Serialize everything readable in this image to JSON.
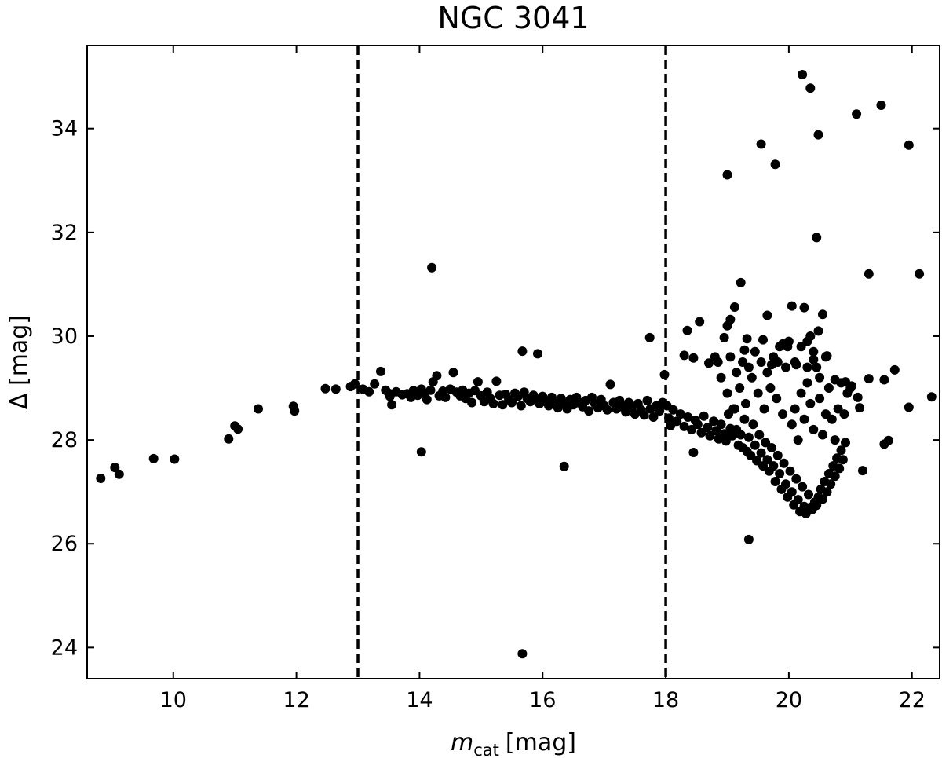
{
  "chart_data": {
    "type": "scatter",
    "title": "NGC 3041",
    "xlabel": {
      "symbol": "m",
      "subscript": "cat",
      "unit": "[mag]"
    },
    "ylabel": "Δ [mag]",
    "xlim": [
      8.6,
      22.45
    ],
    "ylim": [
      23.4,
      35.6
    ],
    "xticks": [
      10,
      12,
      14,
      16,
      18,
      20,
      22
    ],
    "yticks": [
      24,
      26,
      28,
      30,
      32,
      34
    ],
    "vlines": [
      13,
      18
    ],
    "grid": false,
    "legend": "none",
    "marker_color": "#000000",
    "points": [
      [
        8.82,
        27.26
      ],
      [
        9.05,
        27.47
      ],
      [
        9.12,
        27.34
      ],
      [
        9.68,
        27.64
      ],
      [
        10.02,
        27.63
      ],
      [
        10.9,
        28.02
      ],
      [
        11.0,
        28.27
      ],
      [
        11.05,
        28.21
      ],
      [
        11.38,
        28.6
      ],
      [
        11.95,
        28.65
      ],
      [
        11.97,
        28.56
      ],
      [
        12.47,
        28.99
      ],
      [
        12.64,
        28.98
      ],
      [
        12.88,
        29.03
      ],
      [
        12.95,
        29.08
      ],
      [
        13.08,
        28.98
      ],
      [
        13.18,
        28.93
      ],
      [
        13.27,
        29.08
      ],
      [
        13.37,
        29.32
      ],
      [
        13.45,
        28.96
      ],
      [
        13.5,
        28.9
      ],
      [
        13.52,
        28.84
      ],
      [
        13.55,
        28.68
      ],
      [
        13.62,
        28.93
      ],
      [
        13.72,
        28.87
      ],
      [
        13.8,
        28.89
      ],
      [
        13.86,
        28.82
      ],
      [
        13.9,
        28.95
      ],
      [
        13.97,
        28.86
      ],
      [
        14.03,
        28.98
      ],
      [
        14.08,
        28.9
      ],
      [
        14.12,
        28.78
      ],
      [
        14.18,
        28.96
      ],
      [
        14.22,
        29.12
      ],
      [
        14.28,
        29.24
      ],
      [
        14.32,
        28.85
      ],
      [
        14.38,
        28.94
      ],
      [
        14.42,
        28.82
      ],
      [
        14.5,
        28.98
      ],
      [
        14.55,
        29.3
      ],
      [
        14.6,
        28.92
      ],
      [
        14.66,
        28.85
      ],
      [
        14.7,
        28.96
      ],
      [
        14.75,
        28.8
      ],
      [
        14.8,
        28.9
      ],
      [
        14.85,
        28.72
      ],
      [
        14.9,
        28.95
      ],
      [
        14.95,
        29.12
      ],
      [
        15.0,
        28.85
      ],
      [
        15.05,
        28.74
      ],
      [
        15.1,
        28.92
      ],
      [
        15.15,
        28.8
      ],
      [
        15.2,
        28.7
      ],
      [
        15.25,
        29.13
      ],
      [
        15.3,
        28.86
      ],
      [
        15.35,
        28.68
      ],
      [
        15.4,
        28.88
      ],
      [
        15.45,
        28.78
      ],
      [
        15.5,
        28.72
      ],
      [
        15.55,
        28.9
      ],
      [
        15.6,
        28.84
      ],
      [
        15.65,
        28.66
      ],
      [
        15.7,
        28.92
      ],
      [
        15.75,
        28.8
      ],
      [
        15.8,
        28.74
      ],
      [
        15.85,
        28.86
      ],
      [
        15.9,
        28.78
      ],
      [
        15.95,
        28.7
      ],
      [
        16.0,
        28.84
      ],
      [
        16.05,
        28.74
      ],
      [
        16.1,
        28.66
      ],
      [
        16.15,
        28.82
      ],
      [
        16.2,
        28.72
      ],
      [
        16.25,
        28.62
      ],
      [
        16.3,
        28.8
      ],
      [
        16.35,
        28.7
      ],
      [
        16.4,
        28.6
      ],
      [
        16.45,
        28.78
      ],
      [
        16.5,
        28.68
      ],
      [
        16.55,
        28.82
      ],
      [
        16.6,
        28.72
      ],
      [
        16.65,
        28.64
      ],
      [
        16.7,
        28.76
      ],
      [
        16.75,
        28.56
      ],
      [
        16.8,
        28.82
      ],
      [
        16.85,
        28.7
      ],
      [
        16.9,
        28.62
      ],
      [
        16.95,
        28.78
      ],
      [
        17.0,
        28.66
      ],
      [
        17.05,
        28.58
      ],
      [
        17.1,
        29.07
      ],
      [
        17.15,
        28.72
      ],
      [
        17.2,
        28.6
      ],
      [
        17.25,
        28.76
      ],
      [
        17.3,
        28.64
      ],
      [
        17.35,
        28.54
      ],
      [
        17.4,
        28.72
      ],
      [
        17.45,
        28.62
      ],
      [
        17.5,
        28.5
      ],
      [
        17.55,
        28.7
      ],
      [
        17.6,
        28.58
      ],
      [
        17.65,
        28.48
      ],
      [
        17.7,
        28.76
      ],
      [
        17.75,
        28.6
      ],
      [
        17.8,
        28.44
      ],
      [
        17.85,
        28.66
      ],
      [
        17.9,
        28.56
      ],
      [
        17.95,
        28.72
      ],
      [
        14.2,
        31.32
      ],
      [
        15.67,
        29.71
      ],
      [
        15.92,
        29.66
      ],
      [
        17.74,
        29.97
      ],
      [
        14.03,
        27.77
      ],
      [
        16.35,
        27.49
      ],
      [
        15.67,
        23.88
      ],
      [
        18.02,
        28.66
      ],
      [
        18.05,
        28.42
      ],
      [
        18.08,
        28.28
      ],
      [
        18.12,
        28.58
      ],
      [
        18.18,
        28.36
      ],
      [
        18.24,
        28.5
      ],
      [
        18.3,
        28.26
      ],
      [
        18.36,
        28.44
      ],
      [
        18.42,
        28.2
      ],
      [
        18.48,
        28.38
      ],
      [
        18.52,
        28.3
      ],
      [
        18.58,
        28.14
      ],
      [
        18.62,
        28.46
      ],
      [
        18.68,
        28.24
      ],
      [
        18.72,
        28.08
      ],
      [
        18.78,
        28.36
      ],
      [
        18.82,
        28.18
      ],
      [
        18.86,
        28.02
      ],
      [
        18.9,
        28.3
      ],
      [
        18.95,
        28.12
      ],
      [
        18.98,
        27.98
      ],
      [
        19.02,
        28.5
      ],
      [
        19.05,
        28.22
      ],
      [
        19.08,
        28.08
      ],
      [
        19.12,
        28.6
      ],
      [
        19.15,
        28.2
      ],
      [
        19.18,
        27.9
      ],
      [
        19.22,
        28.1
      ],
      [
        19.25,
        27.85
      ],
      [
        19.28,
        28.4
      ],
      [
        19.32,
        27.78
      ],
      [
        19.35,
        28.05
      ],
      [
        19.38,
        27.7
      ],
      [
        19.42,
        28.3
      ],
      [
        19.45,
        27.9
      ],
      [
        19.48,
        27.6
      ],
      [
        19.52,
        28.1
      ],
      [
        19.55,
        27.75
      ],
      [
        19.58,
        27.5
      ],
      [
        19.62,
        27.95
      ],
      [
        19.65,
        27.62
      ],
      [
        19.68,
        27.4
      ],
      [
        19.72,
        27.85
      ],
      [
        19.75,
        27.5
      ],
      [
        19.78,
        27.2
      ],
      [
        19.82,
        27.7
      ],
      [
        19.85,
        27.35
      ],
      [
        19.88,
        27.05
      ],
      [
        19.92,
        27.55
      ],
      [
        19.95,
        27.15
      ],
      [
        19.98,
        26.9
      ],
      [
        20.02,
        27.4
      ],
      [
        20.05,
        27.0
      ],
      [
        20.08,
        26.75
      ],
      [
        20.12,
        27.25
      ],
      [
        20.15,
        26.85
      ],
      [
        20.18,
        26.62
      ],
      [
        20.22,
        27.1
      ],
      [
        20.25,
        26.72
      ],
      [
        20.28,
        26.58
      ],
      [
        20.32,
        26.95
      ],
      [
        20.35,
        26.7
      ],
      [
        20.38,
        26.66
      ],
      [
        20.42,
        26.8
      ],
      [
        20.45,
        26.74
      ],
      [
        20.48,
        26.9
      ],
      [
        20.52,
        27.05
      ],
      [
        20.55,
        26.86
      ],
      [
        20.58,
        27.2
      ],
      [
        20.62,
        27.0
      ],
      [
        20.65,
        27.35
      ],
      [
        20.68,
        27.15
      ],
      [
        20.72,
        27.5
      ],
      [
        20.75,
        27.3
      ],
      [
        20.78,
        27.65
      ],
      [
        20.82,
        27.45
      ],
      [
        20.85,
        27.8
      ],
      [
        20.88,
        27.62
      ],
      [
        20.92,
        27.95
      ],
      [
        20.05,
        28.3
      ],
      [
        20.1,
        28.6
      ],
      [
        20.15,
        28.0
      ],
      [
        20.2,
        28.9
      ],
      [
        20.25,
        28.4
      ],
      [
        20.3,
        29.1
      ],
      [
        20.35,
        28.7
      ],
      [
        20.4,
        28.2
      ],
      [
        20.45,
        29.4
      ],
      [
        20.5,
        28.8
      ],
      [
        20.55,
        28.1
      ],
      [
        20.6,
        28.5
      ],
      [
        20.65,
        29.0
      ],
      [
        20.7,
        28.4
      ],
      [
        20.75,
        28.0
      ],
      [
        20.8,
        28.6
      ],
      [
        20.85,
        29.1
      ],
      [
        20.9,
        28.5
      ],
      [
        20.95,
        28.9
      ],
      [
        21.0,
        29.0
      ],
      [
        19.9,
        28.5
      ],
      [
        19.8,
        28.8
      ],
      [
        19.7,
        29.0
      ],
      [
        19.6,
        28.6
      ],
      [
        19.5,
        28.9
      ],
      [
        19.4,
        29.2
      ],
      [
        19.3,
        28.7
      ],
      [
        19.2,
        29.0
      ],
      [
        19.1,
        28.6
      ],
      [
        19.0,
        28.9
      ],
      [
        18.9,
        29.2
      ],
      [
        18.85,
        29.5
      ],
      [
        19.05,
        29.6
      ],
      [
        19.15,
        29.3
      ],
      [
        19.25,
        29.5
      ],
      [
        19.35,
        29.4
      ],
      [
        19.45,
        29.7
      ],
      [
        19.55,
        29.5
      ],
      [
        19.65,
        29.3
      ],
      [
        19.75,
        29.6
      ],
      [
        19.85,
        29.8
      ],
      [
        19.95,
        29.4
      ],
      [
        20.0,
        29.9
      ],
      [
        20.1,
        29.5
      ],
      [
        20.2,
        29.8
      ],
      [
        20.3,
        29.4
      ],
      [
        20.4,
        29.7
      ],
      [
        20.5,
        29.2
      ],
      [
        20.6,
        29.6
      ],
      [
        18.3,
        29.63
      ],
      [
        18.35,
        30.11
      ],
      [
        18.55,
        30.28
      ],
      [
        18.45,
        29.58
      ],
      [
        18.7,
        29.48
      ],
      [
        18.8,
        29.6
      ],
      [
        18.95,
        29.97
      ],
      [
        19.0,
        30.2
      ],
      [
        19.05,
        30.32
      ],
      [
        19.12,
        30.56
      ],
      [
        19.22,
        31.03
      ],
      [
        19.28,
        29.73
      ],
      [
        19.32,
        29.95
      ],
      [
        19.58,
        29.93
      ],
      [
        19.65,
        30.4
      ],
      [
        19.72,
        29.45
      ],
      [
        19.82,
        29.5
      ],
      [
        19.9,
        29.85
      ],
      [
        19.98,
        29.8
      ],
      [
        20.05,
        30.58
      ],
      [
        20.12,
        29.45
      ],
      [
        20.25,
        30.55
      ],
      [
        20.3,
        29.9
      ],
      [
        20.35,
        30.0
      ],
      [
        20.4,
        29.55
      ],
      [
        20.48,
        30.1
      ],
      [
        20.55,
        30.42
      ],
      [
        20.62,
        29.62
      ],
      [
        20.75,
        29.16
      ],
      [
        20.92,
        29.12
      ],
      [
        21.02,
        29.04
      ],
      [
        21.12,
        28.82
      ],
      [
        21.15,
        28.62
      ],
      [
        21.3,
        29.18
      ],
      [
        21.2,
        27.41
      ],
      [
        21.55,
        27.92
      ],
      [
        21.62,
        27.99
      ],
      [
        21.55,
        29.16
      ],
      [
        21.72,
        29.35
      ],
      [
        21.95,
        28.63
      ],
      [
        22.32,
        28.83
      ],
      [
        19.0,
        33.11
      ],
      [
        19.55,
        33.7
      ],
      [
        19.78,
        33.31
      ],
      [
        20.22,
        35.04
      ],
      [
        20.35,
        34.78
      ],
      [
        20.48,
        33.88
      ],
      [
        20.45,
        31.9
      ],
      [
        21.1,
        34.28
      ],
      [
        21.3,
        31.2
      ],
      [
        21.5,
        34.45
      ],
      [
        21.95,
        33.68
      ],
      [
        22.12,
        31.2
      ],
      [
        19.35,
        26.08
      ],
      [
        18.45,
        27.76
      ],
      [
        17.98,
        29.26
      ]
    ]
  }
}
